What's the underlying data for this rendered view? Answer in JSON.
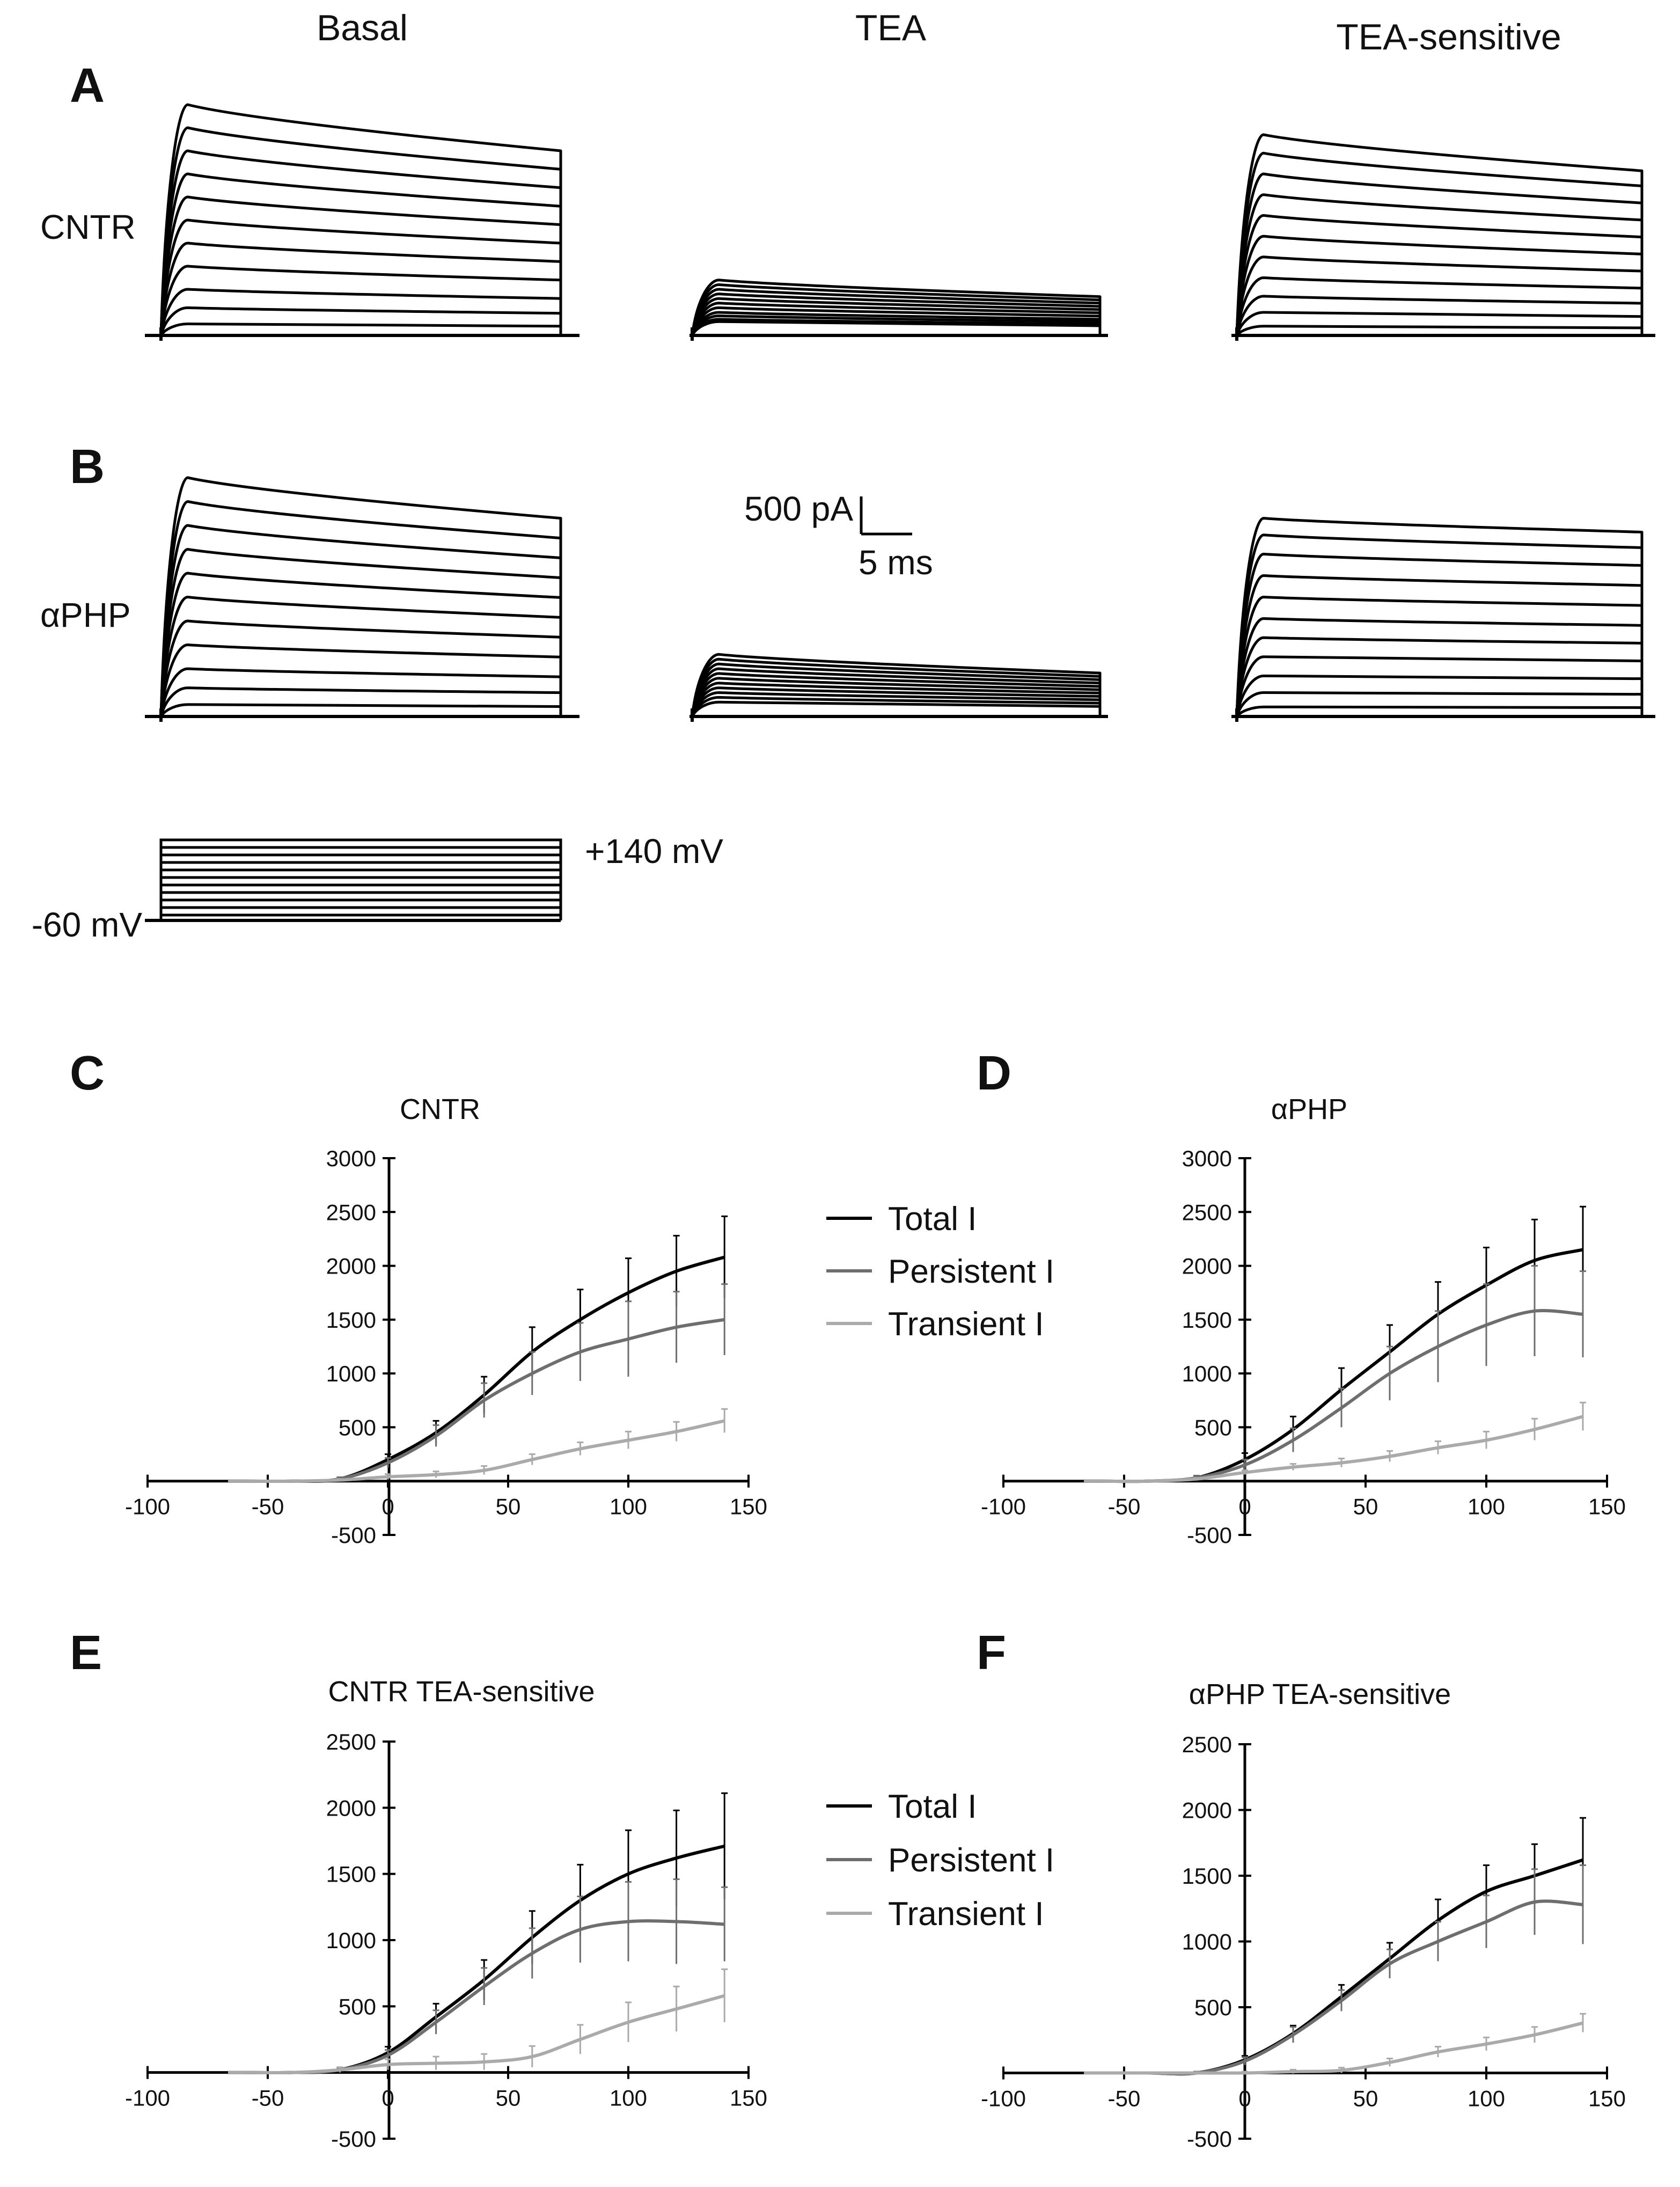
{
  "column_titles": {
    "basal": "Basal",
    "tea": "TEA",
    "tea_sensitive": "TEA-sensitive"
  },
  "row_labels": {
    "cntr": "CNTR",
    "aphp": "αPHP"
  },
  "panel_letters": {
    "a": "A",
    "b": "B",
    "c": "C",
    "d": "D",
    "e": "E",
    "f": "F"
  },
  "scale_bar": {
    "current": "500 pA",
    "time": "5 ms"
  },
  "voltage_protocol": {
    "holding": "-60 mV",
    "max": "+140 mV",
    "steps": 11
  },
  "traces": {
    "cntr": {
      "basal": {
        "peaks": [
          0.05,
          0.12,
          0.2,
          0.3,
          0.4,
          0.5,
          0.6,
          0.7,
          0.8,
          0.9,
          1.0
        ],
        "sag": 0.2
      },
      "tea": {
        "peaks": [
          0.06,
          0.07,
          0.085,
          0.1,
          0.12,
          0.14,
          0.16,
          0.18,
          0.2,
          0.22,
          0.24
        ],
        "sag": 0.3
      },
      "tea_sensitive": {
        "peaks": [
          0.04,
          0.1,
          0.17,
          0.25,
          0.34,
          0.43,
          0.52,
          0.61,
          0.7,
          0.79,
          0.87
        ],
        "sag": 0.18
      }
    },
    "aphp": {
      "basal": {
        "peaks": [
          0.05,
          0.12,
          0.2,
          0.3,
          0.4,
          0.5,
          0.6,
          0.7,
          0.8,
          0.9,
          1.0
        ],
        "sag": 0.17
      },
      "tea": {
        "peaks": [
          0.06,
          0.08,
          0.1,
          0.12,
          0.14,
          0.16,
          0.18,
          0.2,
          0.22,
          0.24,
          0.26
        ],
        "sag": 0.3
      },
      "tea_sensitive": {
        "peaks": [
          0.04,
          0.1,
          0.17,
          0.25,
          0.33,
          0.41,
          0.5,
          0.59,
          0.68,
          0.76,
          0.83
        ],
        "sag": 0.07
      }
    }
  },
  "legend_cd": [
    "Total I",
    "Persistent I",
    "Transient I"
  ],
  "legend_ef": [
    "Total I",
    "Persistent I",
    "Transient I"
  ],
  "colors": {
    "total": "#000000",
    "persistent": "#6e6e6e",
    "transient": "#aaaaaa"
  },
  "chart_data": [
    {
      "panel": "C",
      "type": "line",
      "title": "CNTR",
      "xlim": [
        -100,
        150
      ],
      "ylim": [
        -500,
        3000
      ],
      "xticks": [
        -100,
        -50,
        0,
        50,
        100,
        150
      ],
      "yticks": [
        -500,
        500,
        1000,
        1500,
        2000,
        2500,
        3000
      ],
      "x": [
        -60,
        -40,
        -20,
        0,
        20,
        40,
        60,
        80,
        100,
        120,
        140
      ],
      "series": [
        {
          "name": "Total I",
          "values": [
            0,
            0,
            20,
            200,
            450,
            800,
            1200,
            1500,
            1750,
            1950,
            2080
          ],
          "errors": [
            0,
            0,
            15,
            50,
            110,
            170,
            230,
            280,
            320,
            330,
            380
          ]
        },
        {
          "name": "Persistent I",
          "values": [
            0,
            0,
            20,
            170,
            420,
            750,
            1000,
            1200,
            1320,
            1430,
            1500
          ],
          "errors": [
            0,
            0,
            15,
            45,
            100,
            160,
            200,
            270,
            350,
            330,
            330
          ]
        },
        {
          "name": "Transient I",
          "values": [
            0,
            0,
            10,
            40,
            60,
            100,
            200,
            300,
            380,
            460,
            560
          ],
          "errors": [
            0,
            0,
            10,
            25,
            30,
            40,
            50,
            60,
            80,
            90,
            110
          ]
        }
      ]
    },
    {
      "panel": "D",
      "type": "line",
      "title": "αPHP",
      "xlim": [
        -100,
        150
      ],
      "ylim": [
        -500,
        3000
      ],
      "xticks": [
        -100,
        -50,
        0,
        50,
        100,
        150
      ],
      "yticks": [
        -500,
        500,
        1000,
        1500,
        2000,
        2500,
        3000
      ],
      "x": [
        -60,
        -40,
        -20,
        0,
        20,
        40,
        60,
        80,
        100,
        120,
        140
      ],
      "series": [
        {
          "name": "Total I",
          "values": [
            0,
            0,
            30,
            200,
            480,
            850,
            1200,
            1550,
            1820,
            2050,
            2150
          ],
          "errors": [
            0,
            0,
            20,
            60,
            120,
            200,
            250,
            300,
            350,
            380,
            400
          ]
        },
        {
          "name": "Persistent I",
          "values": [
            0,
            0,
            30,
            150,
            380,
            680,
            1000,
            1250,
            1450,
            1580,
            1550
          ],
          "errors": [
            0,
            0,
            20,
            50,
            110,
            180,
            250,
            330,
            380,
            420,
            400
          ]
        },
        {
          "name": "Transient I",
          "values": [
            0,
            0,
            20,
            80,
            130,
            170,
            230,
            310,
            380,
            480,
            600
          ],
          "errors": [
            0,
            0,
            10,
            20,
            30,
            40,
            50,
            60,
            80,
            100,
            130
          ]
        }
      ]
    },
    {
      "panel": "E",
      "type": "line",
      "title": "CNTR TEA-sensitive",
      "xlim": [
        -100,
        150
      ],
      "ylim": [
        -500,
        2500
      ],
      "xticks": [
        -100,
        -50,
        0,
        50,
        100,
        150
      ],
      "yticks": [
        -500,
        500,
        1000,
        1500,
        2000,
        2500
      ],
      "x": [
        -60,
        -40,
        -20,
        0,
        20,
        40,
        60,
        80,
        100,
        120,
        140
      ],
      "series": [
        {
          "name": "Total I",
          "values": [
            0,
            0,
            20,
            150,
            420,
            700,
            1020,
            1300,
            1500,
            1620,
            1710
          ],
          "errors": [
            0,
            0,
            15,
            45,
            100,
            150,
            200,
            270,
            330,
            360,
            400
          ]
        },
        {
          "name": "Persistent I",
          "values": [
            0,
            0,
            20,
            130,
            380,
            650,
            900,
            1080,
            1140,
            1140,
            1120
          ],
          "errors": [
            0,
            0,
            15,
            40,
            90,
            140,
            190,
            250,
            300,
            320,
            280
          ]
        },
        {
          "name": "Transient I",
          "values": [
            0,
            0,
            20,
            60,
            70,
            80,
            120,
            250,
            380,
            480,
            580
          ],
          "errors": [
            0,
            0,
            20,
            40,
            50,
            60,
            80,
            110,
            150,
            170,
            200
          ]
        }
      ]
    },
    {
      "panel": "F",
      "type": "line",
      "title": "αPHP TEA-sensitive",
      "xlim": [
        -100,
        150
      ],
      "ylim": [
        -500,
        2500
      ],
      "xticks": [
        -100,
        -50,
        0,
        50,
        100,
        150
      ],
      "yticks": [
        -500,
        500,
        1000,
        1500,
        2000,
        2500
      ],
      "x": [
        -60,
        -40,
        -20,
        0,
        20,
        40,
        60,
        80,
        100,
        120,
        140
      ],
      "series": [
        {
          "name": "Total I",
          "values": [
            0,
            0,
            0,
            100,
            300,
            580,
            870,
            1160,
            1380,
            1500,
            1620
          ],
          "errors": [
            0,
            0,
            10,
            30,
            60,
            90,
            120,
            160,
            200,
            240,
            320
          ]
        },
        {
          "name": "Persistent I",
          "values": [
            0,
            0,
            0,
            90,
            290,
            550,
            830,
            1000,
            1150,
            1300,
            1280
          ],
          "errors": [
            0,
            0,
            10,
            30,
            60,
            80,
            110,
            150,
            200,
            250,
            300
          ]
        },
        {
          "name": "Transient I",
          "values": [
            0,
            0,
            0,
            0,
            10,
            20,
            80,
            160,
            220,
            290,
            380
          ],
          "errors": [
            0,
            0,
            5,
            10,
            15,
            20,
            30,
            40,
            50,
            60,
            70
          ]
        }
      ]
    }
  ]
}
